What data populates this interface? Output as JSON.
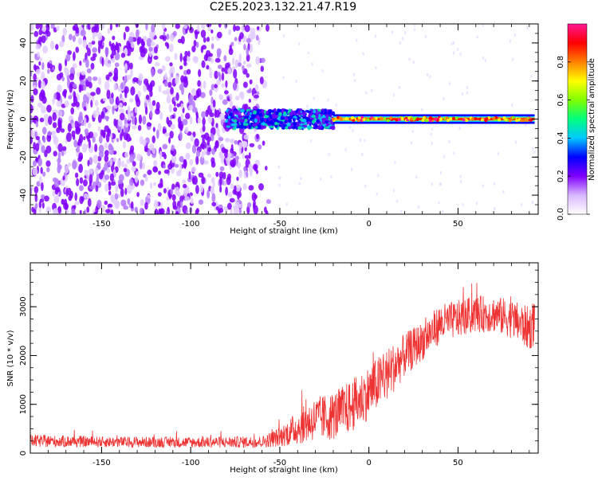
{
  "title": "C2E5.2023.132.21.47.R19",
  "chart_data": [
    {
      "type": "heatmap",
      "xlabel": "Height of straight line (km)",
      "ylabel": "Frequency (Hz)",
      "xlim": [
        -190,
        95
      ],
      "ylim": [
        -50,
        50
      ],
      "x_ticks": [
        -150,
        -100,
        -50,
        0,
        50
      ],
      "y_ticks": [
        -40,
        -20,
        0,
        20,
        40
      ],
      "colorbar": {
        "label": "Normalized spectral amplitude",
        "range": [
          0.0,
          1.0
        ],
        "ticks": [
          "0.0",
          "0.2",
          "0.4",
          "0.6",
          "0.8"
        ],
        "colors": [
          "#ffffff",
          "#d9b8ff",
          "#8000ff",
          "#0000ff",
          "#00c8ff",
          "#00ff7f",
          "#80ff00",
          "#ffff00",
          "#ff8000",
          "#ff0000",
          "#ff1493"
        ]
      },
      "regions": [
        {
          "x": [
            -190,
            -55
          ],
          "description_amplitude": "0.1–0.3 noise, full frequency band"
        },
        {
          "x": [
            -80,
            -20
          ],
          "freq_width_hz": 6,
          "amplitude": 0.35
        },
        {
          "x": [
            -20,
            93
          ],
          "freq_width_hz": 3,
          "amplitude": 0.95
        }
      ]
    },
    {
      "type": "line",
      "xlabel": "Height of straight line (km)",
      "ylabel": "SNR (10 * v/v)",
      "xlim": [
        -190,
        95
      ],
      "ylim": [
        0,
        3900
      ],
      "x_ticks": [
        -150,
        -100,
        -50,
        0,
        50
      ],
      "y_ticks": [
        0,
        1000,
        2000,
        3000
      ],
      "color": "#ee3333",
      "trend": {
        "x": [
          -190,
          -150,
          -100,
          -60,
          -50,
          -40,
          -30,
          -20,
          -10,
          0,
          10,
          20,
          30,
          40,
          50,
          60,
          70,
          80,
          90,
          93
        ],
        "mean": [
          250,
          230,
          220,
          230,
          330,
          520,
          700,
          760,
          950,
          1250,
          1600,
          2000,
          2300,
          2650,
          2750,
          2850,
          2850,
          2750,
          2550,
          2700
        ],
        "spread": [
          130,
          110,
          110,
          120,
          200,
          350,
          450,
          500,
          550,
          550,
          550,
          450,
          400,
          400,
          380,
          380,
          380,
          400,
          450,
          500
        ]
      }
    }
  ]
}
